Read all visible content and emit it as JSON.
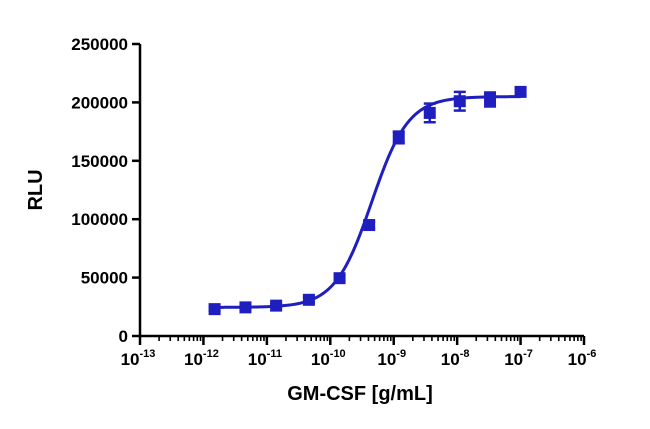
{
  "chart_data": {
    "type": "scatter",
    "xlabel": "GM-CSF [g/mL]",
    "ylabel": "RLU",
    "x_scale": "log",
    "xlim": [
      1e-13,
      1e-06
    ],
    "ylim": [
      0,
      250000
    ],
    "x_ticks": [
      {
        "base": "10",
        "exp": "-13",
        "value": 1e-13
      },
      {
        "base": "10",
        "exp": "-12",
        "value": 1e-12
      },
      {
        "base": "10",
        "exp": "-11",
        "value": 1e-11
      },
      {
        "base": "10",
        "exp": "-10",
        "value": 1e-10
      },
      {
        "base": "10",
        "exp": "-9",
        "value": 1e-09
      },
      {
        "base": "10",
        "exp": "-8",
        "value": 1e-08
      },
      {
        "base": "10",
        "exp": "-7",
        "value": 1e-07
      },
      {
        "base": "10",
        "exp": "-6",
        "value": 1e-06
      }
    ],
    "y_ticks": [
      {
        "label": "0",
        "value": 0
      },
      {
        "label": "50000",
        "value": 50000
      },
      {
        "label": "100000",
        "value": 100000
      },
      {
        "label": "150000",
        "value": 150000
      },
      {
        "label": "200000",
        "value": 200000
      },
      {
        "label": "250000",
        "value": 250000
      }
    ],
    "grid": false,
    "marker": "square",
    "color": "#1f1fbf",
    "series": [
      {
        "points": [
          {
            "x": 1.5e-12,
            "y": 23000,
            "err": 1500
          },
          {
            "x": 4.6e-12,
            "y": 24500,
            "err": 1500
          },
          {
            "x": 1.4e-11,
            "y": 26000,
            "err": 1500
          },
          {
            "x": 4.6e-11,
            "y": 31000,
            "err": 2000
          },
          {
            "x": 1.4e-10,
            "y": 49500,
            "err": 2500
          },
          {
            "x": 4.1e-10,
            "y": 95000,
            "err": 3000
          },
          {
            "x": 1.2e-09,
            "y": 170000,
            "err": 5000
          },
          {
            "x": 3.7e-09,
            "y": 191000,
            "err": 8000
          },
          {
            "x": 1.1e-08,
            "y": 201000,
            "err": 8000
          },
          {
            "x": 3.3e-08,
            "y": 202500,
            "err": 6000
          },
          {
            "x": 1e-07,
            "y": 209000,
            "err": 3000
          }
        ],
        "fit": {
          "model": "4PL",
          "bottom": 24500,
          "top": 205000,
          "ec50": 4.5e-10,
          "hill": 1.5
        }
      }
    ]
  }
}
